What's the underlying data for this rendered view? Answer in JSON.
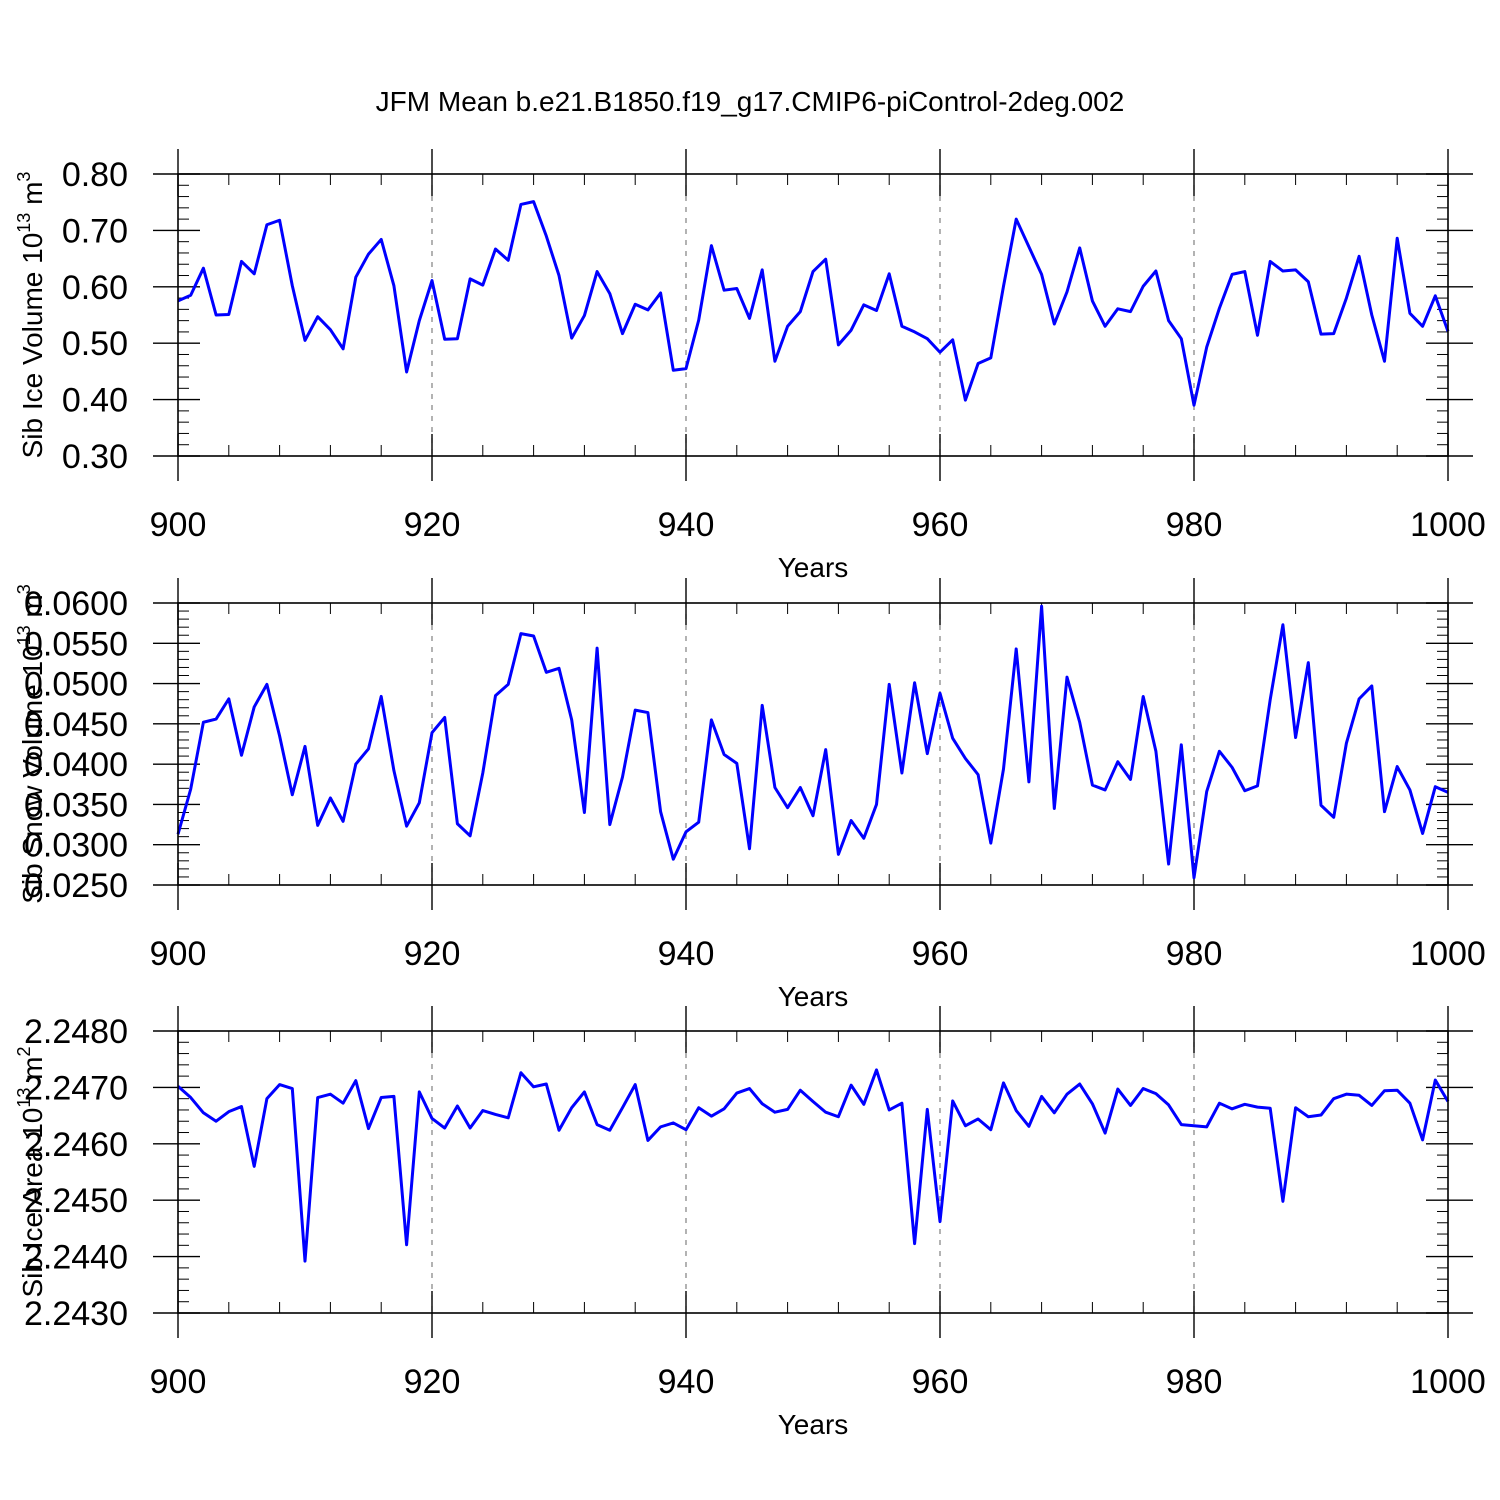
{
  "title": "JFM Mean b.e21.B1850.f19_g17.CMIP6-piControl-2deg.002",
  "colors": {
    "line": "#0000ff",
    "axes": "#000000",
    "grid": "#808080",
    "background": "#ffffff"
  },
  "chart_data": [
    {
      "type": "line",
      "xlabel": "Years",
      "ylabel": "Sib Ice Volume 10",
      "ylabel_exp": "13",
      "ylabel_unit": " m",
      "ylabel_unit_exp": "3",
      "xlim": [
        900,
        1000
      ],
      "ylim": [
        0.3,
        0.8
      ],
      "x_ticks": [
        900,
        920,
        940,
        960,
        980,
        1000
      ],
      "x_tick_labels": [
        "900",
        "920",
        "940",
        "960",
        "980",
        "1000"
      ],
      "y_ticks": [
        0.3,
        0.4,
        0.5,
        0.6,
        0.7,
        0.8
      ],
      "y_tick_labels": [
        "0.30",
        "0.40",
        "0.50",
        "0.60",
        "0.70",
        "0.80"
      ],
      "y_minor_step": 0.02,
      "x_minor_step": 4,
      "grid_x": [
        920,
        940,
        960,
        980
      ],
      "x_start": 900,
      "series": [
        {
          "name": "Sib Ice Volume",
          "values": [
            0.575,
            0.585,
            0.633,
            0.55,
            0.551,
            0.645,
            0.623,
            0.71,
            0.718,
            0.602,
            0.505,
            0.547,
            0.524,
            0.49,
            0.617,
            0.658,
            0.684,
            0.602,
            0.449,
            0.54,
            0.611,
            0.507,
            0.508,
            0.614,
            0.603,
            0.667,
            0.647,
            0.746,
            0.751,
            0.69,
            0.62,
            0.509,
            0.549,
            0.627,
            0.588,
            0.517,
            0.569,
            0.559,
            0.589,
            0.452,
            0.455,
            0.541,
            0.673,
            0.594,
            0.597,
            0.544,
            0.63,
            0.468,
            0.53,
            0.556,
            0.627,
            0.649,
            0.497,
            0.523,
            0.568,
            0.558,
            0.623,
            0.53,
            0.52,
            0.508,
            0.484,
            0.506,
            0.399,
            0.464,
            0.474,
            0.601,
            0.72,
            0.671,
            0.622,
            0.534,
            0.591,
            0.669,
            0.575,
            0.53,
            0.561,
            0.556,
            0.601,
            0.628,
            0.54,
            0.508,
            0.39,
            0.493,
            0.562,
            0.622,
            0.627,
            0.514,
            0.645,
            0.628,
            0.63,
            0.609,
            0.516,
            0.517,
            0.58,
            0.654,
            0.55,
            0.468,
            0.686,
            0.553,
            0.53,
            0.584,
            0.521
          ]
        }
      ]
    },
    {
      "type": "line",
      "xlabel": "Years",
      "ylabel": "Sib Snow Volume 10",
      "ylabel_exp": "13",
      "ylabel_unit": " m",
      "ylabel_unit_exp": "3",
      "xlim": [
        900,
        1000
      ],
      "ylim": [
        0.025,
        0.06
      ],
      "x_ticks": [
        900,
        920,
        940,
        960,
        980,
        1000
      ],
      "x_tick_labels": [
        "900",
        "920",
        "940",
        "960",
        "980",
        "1000"
      ],
      "y_ticks": [
        0.025,
        0.03,
        0.035,
        0.04,
        0.045,
        0.05,
        0.055,
        0.06
      ],
      "y_tick_labels": [
        "0.0250",
        "0.0300",
        "0.0350",
        "0.0400",
        "0.0450",
        "0.0500",
        "0.0550",
        "0.0600"
      ],
      "y_minor_step": 0.001,
      "x_minor_step": 4,
      "grid_x": [
        920,
        940,
        960,
        980
      ],
      "x_start": 900,
      "series": [
        {
          "name": "Sib Snow Volume",
          "values": [
            0.0313,
            0.0369,
            0.0452,
            0.0456,
            0.0481,
            0.0411,
            0.0471,
            0.0499,
            0.0435,
            0.0362,
            0.0422,
            0.0324,
            0.0358,
            0.0329,
            0.04,
            0.0419,
            0.0484,
            0.0392,
            0.0323,
            0.0352,
            0.0439,
            0.0458,
            0.0326,
            0.0311,
            0.0389,
            0.0485,
            0.0499,
            0.0562,
            0.0559,
            0.0514,
            0.0519,
            0.0455,
            0.034,
            0.0544,
            0.0325,
            0.0384,
            0.0467,
            0.0464,
            0.0341,
            0.0282,
            0.0316,
            0.0328,
            0.0455,
            0.0412,
            0.0401,
            0.0295,
            0.0473,
            0.0371,
            0.0346,
            0.0371,
            0.0336,
            0.0418,
            0.0288,
            0.033,
            0.0308,
            0.035,
            0.0499,
            0.0389,
            0.0501,
            0.0413,
            0.0488,
            0.0432,
            0.0407,
            0.0387,
            0.0302,
            0.0394,
            0.0543,
            0.0378,
            0.0596,
            0.0345,
            0.0508,
            0.0452,
            0.0374,
            0.0368,
            0.0403,
            0.0381,
            0.0484,
            0.0416,
            0.0276,
            0.0424,
            0.0259,
            0.0366,
            0.0416,
            0.0396,
            0.0367,
            0.0373,
            0.048,
            0.0573,
            0.0433,
            0.0526,
            0.0349,
            0.0334,
            0.0426,
            0.0481,
            0.0497,
            0.0341,
            0.0397,
            0.0368,
            0.0314,
            0.0372,
            0.0365
          ]
        }
      ]
    },
    {
      "type": "line",
      "xlabel": "Years",
      "ylabel": "Sib Ice Area 10",
      "ylabel_exp": "13",
      "ylabel_unit": " m",
      "ylabel_unit_exp": "2",
      "xlim": [
        900,
        1000
      ],
      "ylim": [
        2.243,
        2.248
      ],
      "x_ticks": [
        900,
        920,
        940,
        960,
        980,
        1000
      ],
      "x_tick_labels": [
        "900",
        "920",
        "940",
        "960",
        "980",
        "1000"
      ],
      "y_ticks": [
        2.243,
        2.244,
        2.245,
        2.246,
        2.247,
        2.248
      ],
      "y_tick_labels": [
        "2.2430",
        "2.2440",
        "2.2450",
        "2.2460",
        "2.2470",
        "2.2480"
      ],
      "y_minor_step": 0.0002,
      "x_minor_step": 4,
      "grid_x": [
        920,
        940,
        960,
        980
      ],
      "x_start": 900,
      "series": [
        {
          "name": "Sib Ice Area",
          "values": [
            2.24702,
            2.24682,
            2.24655,
            2.2464,
            2.24657,
            2.24666,
            2.2456,
            2.2468,
            2.24705,
            2.24698,
            2.24392,
            2.24682,
            2.24688,
            2.24672,
            2.24712,
            2.24627,
            2.24682,
            2.24684,
            2.24421,
            2.24692,
            2.24645,
            2.24628,
            2.24667,
            2.24628,
            2.24659,
            2.24652,
            2.24646,
            2.24726,
            2.24701,
            2.24706,
            2.24624,
            2.24664,
            2.24692,
            2.24634,
            2.24624,
            2.24664,
            2.24705,
            2.24606,
            2.2463,
            2.24637,
            2.24625,
            2.24664,
            2.24649,
            2.24662,
            2.2469,
            2.24698,
            2.24671,
            2.24656,
            2.24661,
            2.24695,
            2.24675,
            2.24656,
            2.24648,
            2.24704,
            2.2467,
            2.24731,
            2.2466,
            2.24672,
            2.24423,
            2.24661,
            2.24462,
            2.24676,
            2.24632,
            2.24644,
            2.24625,
            2.24708,
            2.24659,
            2.24631,
            2.24684,
            2.24655,
            2.24688,
            2.24706,
            2.24671,
            2.24619,
            2.24697,
            2.24668,
            2.24698,
            2.24689,
            2.24669,
            2.24634,
            2.24632,
            2.2463,
            2.24672,
            2.24662,
            2.2467,
            2.24665,
            2.24663,
            2.24498,
            2.24664,
            2.24648,
            2.24651,
            2.2468,
            2.24688,
            2.24686,
            2.24668,
            2.24694,
            2.24695,
            2.24672,
            2.24607,
            2.24713,
            2.24675
          ]
        }
      ]
    }
  ]
}
